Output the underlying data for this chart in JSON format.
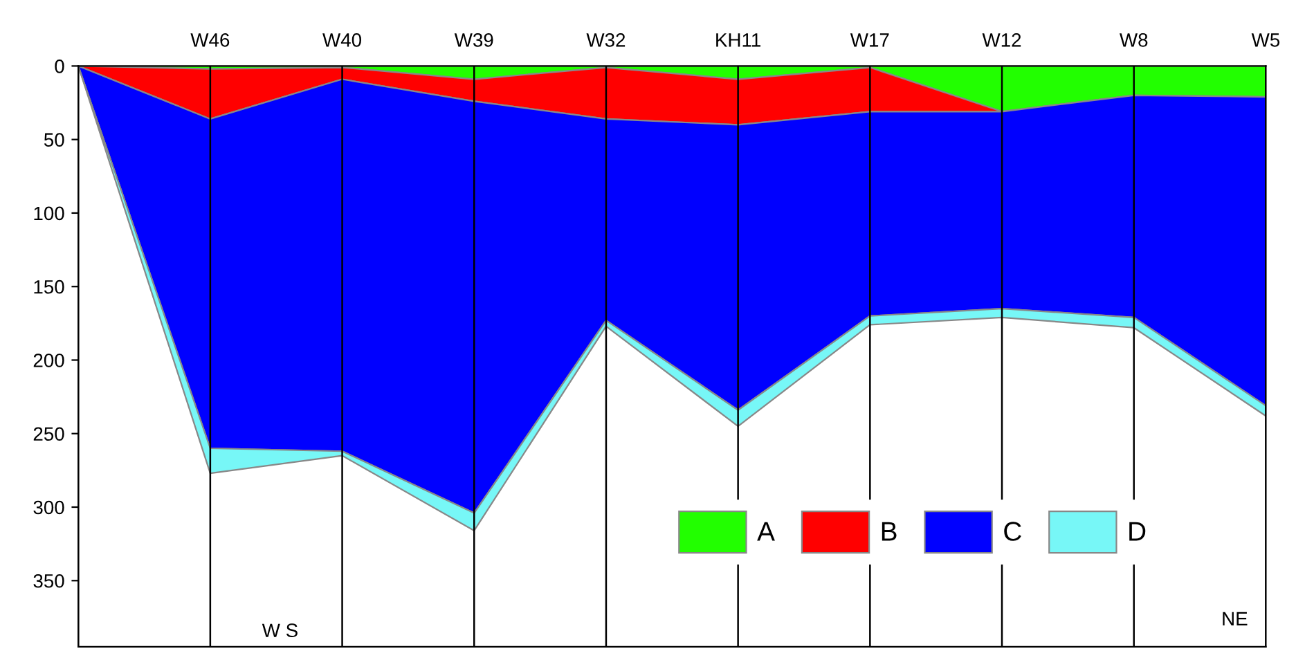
{
  "chart_data": {
    "type": "area",
    "stacked": true,
    "categories": [
      null,
      "W46",
      "W40",
      "W39",
      "W32",
      "KH11",
      "W17",
      "W12",
      "W8",
      "W5"
    ],
    "series": [
      {
        "name": "A",
        "color": "#22ff00",
        "values": [
          0,
          2,
          1,
          9,
          1,
          9,
          1,
          31,
          20,
          21
        ]
      },
      {
        "name": "B",
        "color": "#ff0000",
        "values": [
          0,
          34,
          8,
          15,
          35,
          31,
          30,
          0,
          0,
          0
        ]
      },
      {
        "name": "C",
        "color": "#0000ff",
        "values": [
          0,
          224,
          253,
          280,
          137,
          194,
          139,
          134,
          151,
          210
        ]
      },
      {
        "name": "D",
        "color": "#77f7f7",
        "values": [
          0,
          17,
          3,
          12,
          4,
          11,
          6,
          6,
          7,
          7
        ]
      }
    ],
    "ylim": [
      395,
      0
    ],
    "yticks": [
      0,
      50,
      100,
      150,
      200,
      250,
      300,
      350
    ],
    "grid": "x",
    "legend": "bottom right",
    "annotations": [
      "W S",
      "NE"
    ]
  }
}
